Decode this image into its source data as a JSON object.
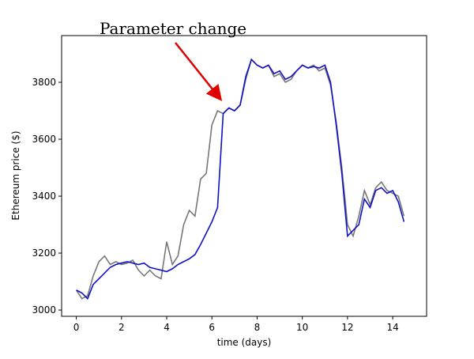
{
  "chart_data": {
    "type": "line",
    "annotation": "Parameter change",
    "xlabel": "time (days)",
    "ylabel": "Ethereum price ($)",
    "x": [
      0,
      0.25,
      0.5,
      0.75,
      1,
      1.25,
      1.5,
      1.75,
      2,
      2.25,
      2.5,
      2.75,
      3,
      3.25,
      3.5,
      3.75,
      4,
      4.25,
      4.5,
      4.75,
      5,
      5.25,
      5.5,
      5.75,
      6,
      6.25,
      6.5,
      6.75,
      7,
      7.25,
      7.5,
      7.75,
      8,
      8.25,
      8.5,
      8.75,
      9,
      9.25,
      9.5,
      9.75,
      10,
      10.25,
      10.5,
      10.75,
      11,
      11.25,
      11.5,
      11.75,
      12,
      12.25,
      12.5,
      12.75,
      13,
      13.25,
      13.5,
      13.75,
      14,
      14.25,
      14.5
    ],
    "series": [
      {
        "color": "#777777",
        "values": [
          3070,
          3040,
          3050,
          3120,
          3170,
          3190,
          3160,
          3170,
          3160,
          3165,
          3175,
          3140,
          3120,
          3140,
          3120,
          3110,
          3240,
          3160,
          3190,
          3300,
          3350,
          3330,
          3460,
          3480,
          3650,
          3700,
          3690,
          3710,
          3700,
          3720,
          3810,
          3880,
          3860,
          3850,
          3860,
          3820,
          3830,
          3800,
          3810,
          3840,
          3860,
          3850,
          3860,
          3840,
          3850,
          3790,
          3660,
          3500,
          3300,
          3260,
          3330,
          3420,
          3370,
          3430,
          3450,
          3420,
          3410,
          3400,
          3330
        ]
      },
      {
        "color": "#1010c8",
        "values": [
          3070,
          3060,
          3040,
          3090,
          3110,
          3130,
          3150,
          3160,
          3165,
          3170,
          3165,
          3160,
          3165,
          3150,
          3145,
          3140,
          3135,
          3145,
          3160,
          3170,
          3180,
          3195,
          3230,
          3270,
          3310,
          3360,
          3690,
          3710,
          3700,
          3720,
          3820,
          3880,
          3860,
          3850,
          3860,
          3830,
          3840,
          3810,
          3820,
          3840,
          3860,
          3850,
          3855,
          3850,
          3860,
          3800,
          3650,
          3480,
          3260,
          3280,
          3300,
          3390,
          3360,
          3420,
          3430,
          3410,
          3420,
          3380,
          3310
        ]
      }
    ],
    "xlim": [
      -0.65,
      15.5
    ],
    "xticks": [
      0,
      2,
      4,
      6,
      8,
      10,
      12,
      14
    ],
    "ylim": [
      2978,
      3964
    ],
    "yticks": [
      3000,
      3200,
      3400,
      3600,
      3800
    ]
  }
}
